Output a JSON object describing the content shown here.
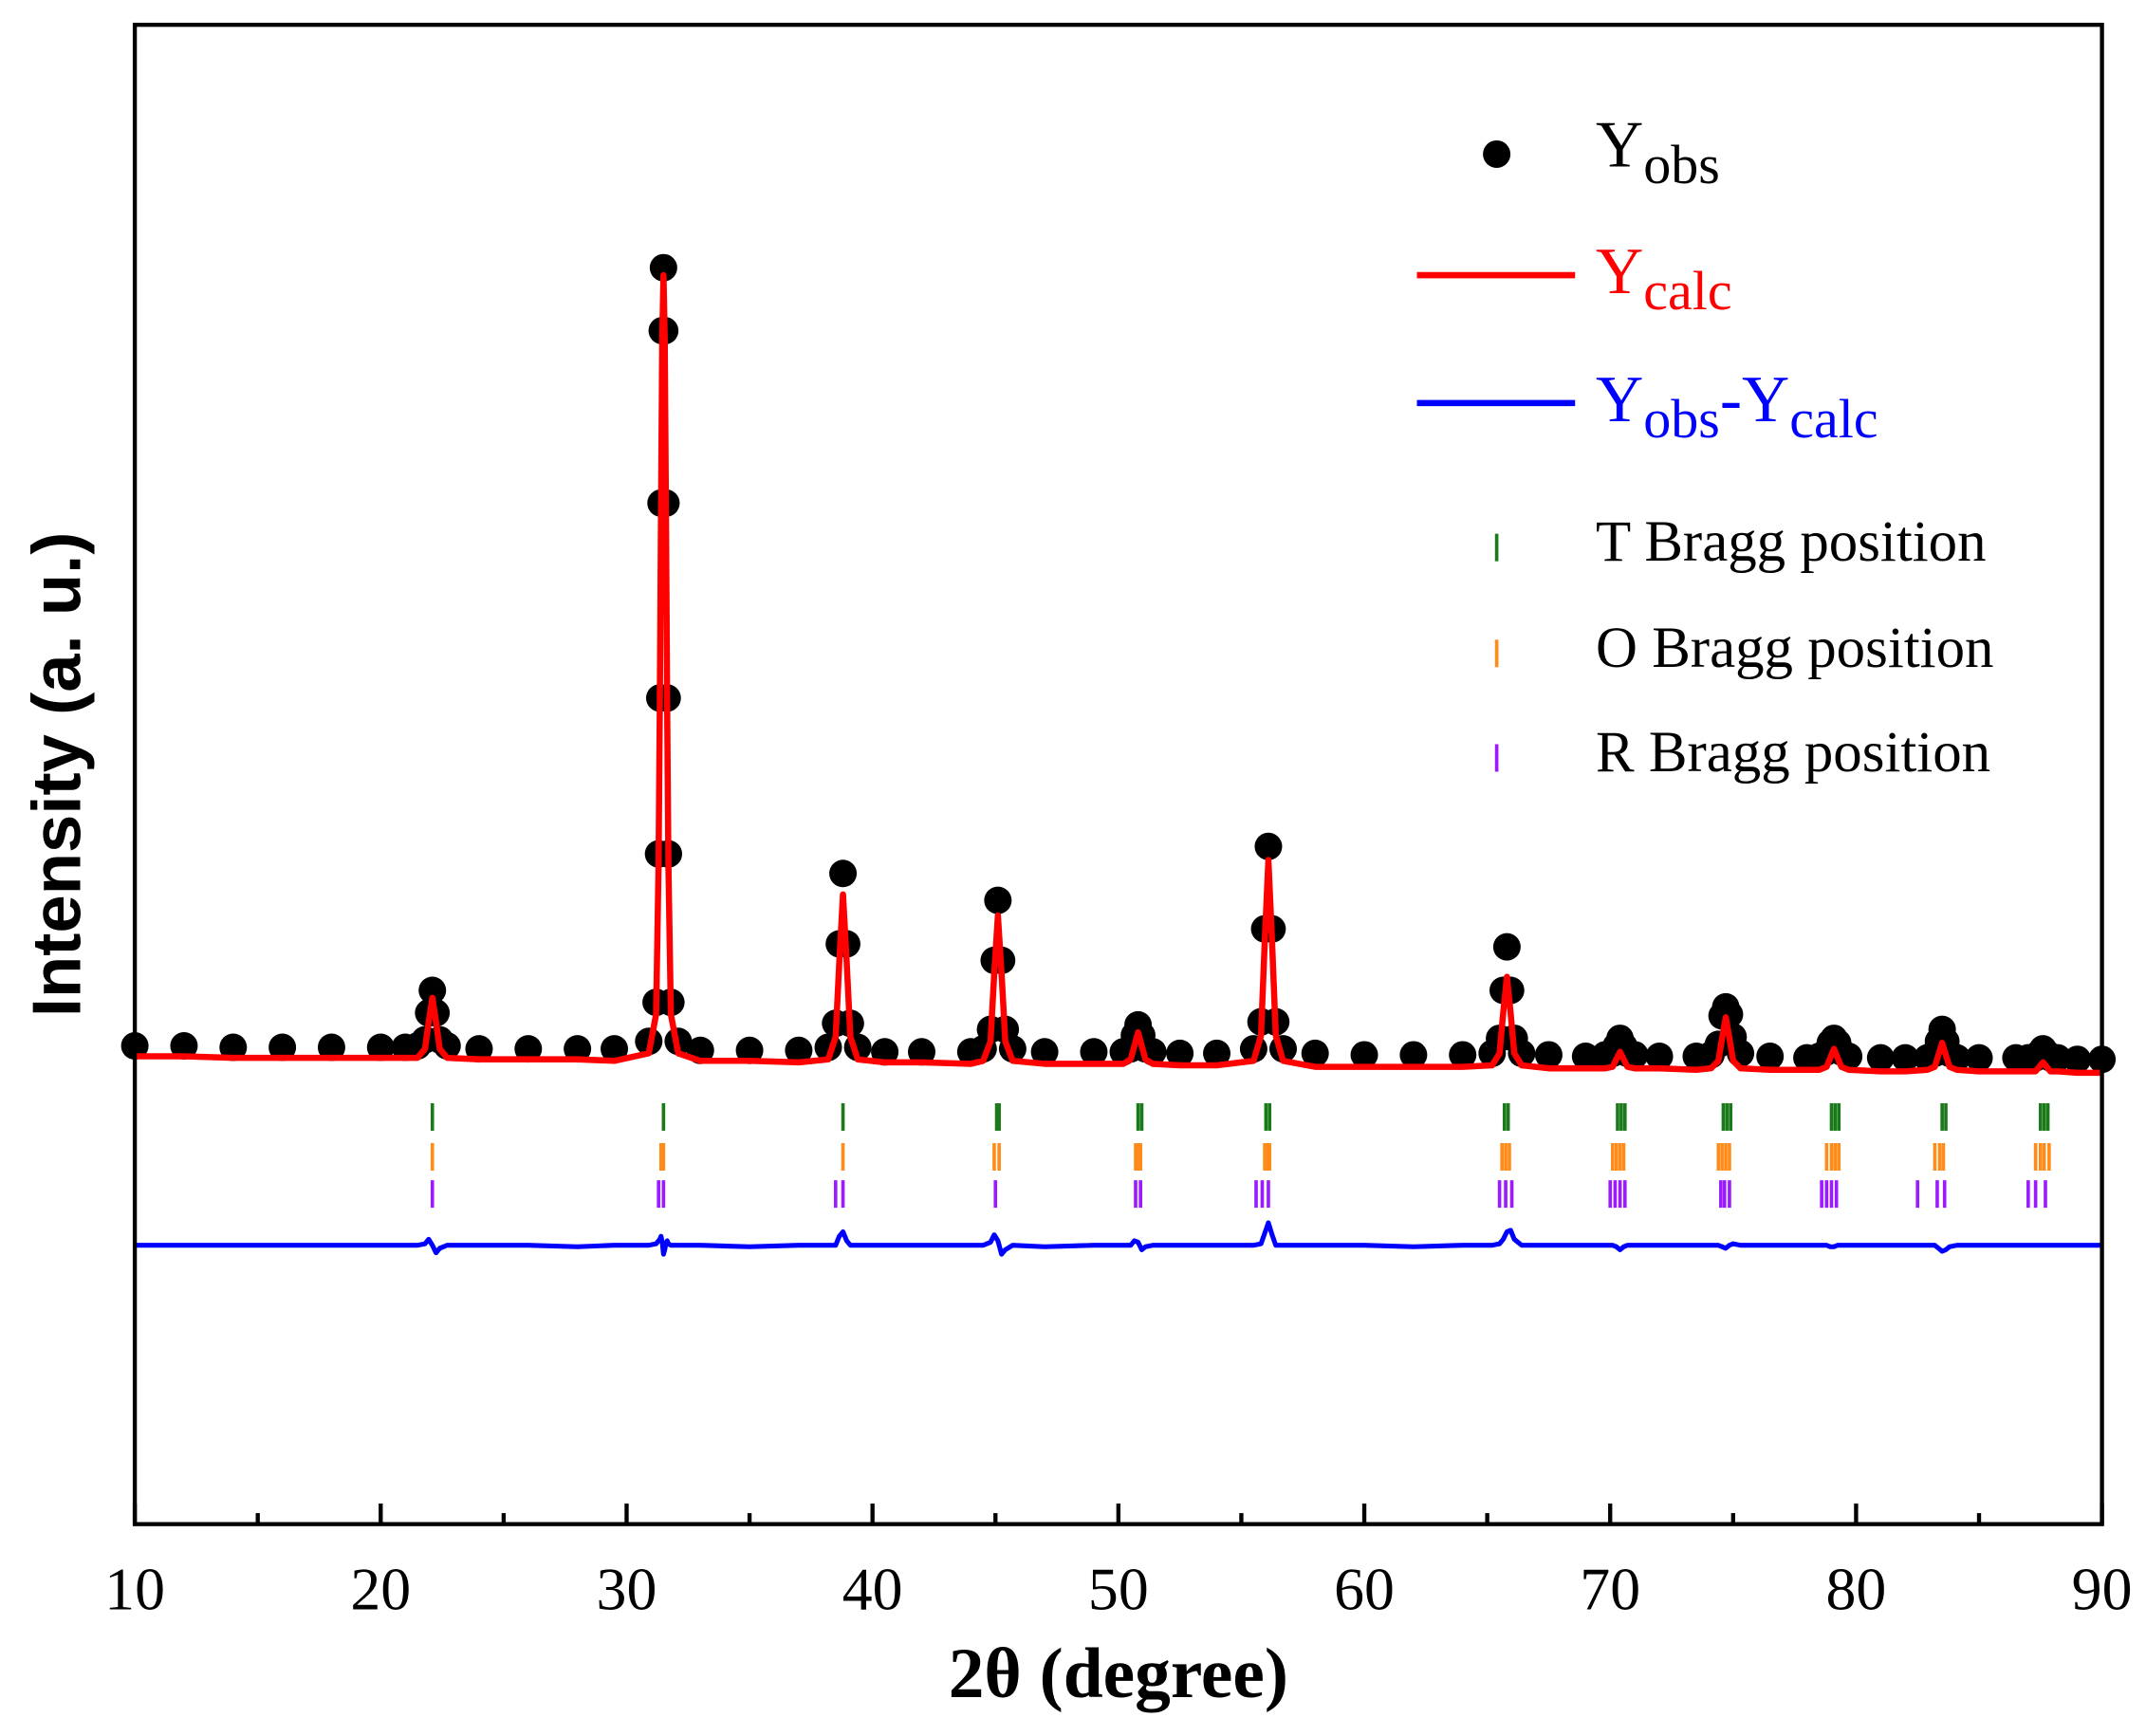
{
  "chart_data": {
    "type": "line",
    "xlabel": "2θ (degree)",
    "ylabel": "Intensity (a. u.)",
    "xlim": [
      10,
      90
    ],
    "xticks": [
      10,
      20,
      30,
      40,
      50,
      60,
      70,
      80,
      90
    ],
    "xminorticks": [
      15,
      25,
      35,
      45,
      55,
      65,
      75,
      85
    ],
    "ylim": [
      0,
      100
    ],
    "legend": "upper right",
    "x": [
      10,
      12,
      14,
      16,
      18,
      20,
      21,
      21.5,
      21.8,
      21.95,
      22.1,
      22.25,
      22.4,
      22.7,
      24,
      26,
      28,
      29.5,
      30.9,
      31.2,
      31.3,
      31.35,
      31.4,
      31.45,
      31.5,
      31.55,
      31.6,
      31.65,
      31.7,
      31.8,
      32.1,
      33,
      35,
      37,
      38.2,
      38.5,
      38.65,
      38.8,
      38.95,
      39.1,
      39.4,
      40.5,
      42,
      44,
      44.5,
      44.8,
      44.95,
      45.1,
      45.25,
      45.4,
      45.7,
      47,
      49,
      50.2,
      50.5,
      50.65,
      50.8,
      50.95,
      51.1,
      51.4,
      52.5,
      54,
      55.5,
      55.8,
      55.95,
      56.1,
      56.25,
      56.4,
      56.7,
      58,
      60,
      62,
      64,
      65.2,
      65.5,
      65.65,
      65.8,
      65.95,
      66.1,
      66.4,
      67.5,
      69,
      69.8,
      70.1,
      70.25,
      70.4,
      70.55,
      70.7,
      71.0,
      72,
      73.5,
      74.1,
      74.4,
      74.55,
      74.7,
      74.85,
      75.0,
      75.3,
      76.5,
      78,
      78.5,
      78.8,
      78.95,
      79.1,
      79.25,
      79.4,
      79.7,
      81,
      82,
      82.9,
      83.2,
      83.35,
      83.5,
      83.65,
      83.8,
      84.1,
      85,
      86.5,
      87.0,
      87.3,
      87.45,
      87.6,
      87.75,
      87.9,
      88.2,
      89,
      90
    ],
    "series": [
      {
        "name": [
          "Y",
          "obs"
        ],
        "color": "#000000",
        "style": "markers",
        "values": [
          31.9,
          31.9,
          31.8,
          31.8,
          31.8,
          31.8,
          31.8,
          31.9,
          32.3,
          34.1,
          35.6,
          34.1,
          32.3,
          31.9,
          31.7,
          31.7,
          31.7,
          31.7,
          32.2,
          34.8,
          44.7,
          55.1,
          68.1,
          79.6,
          83.8,
          79.6,
          68.1,
          55.1,
          44.7,
          34.8,
          32.2,
          31.6,
          31.6,
          31.6,
          31.8,
          33.4,
          38.7,
          43.4,
          38.7,
          33.4,
          31.8,
          31.5,
          31.5,
          31.5,
          31.7,
          33.0,
          37.6,
          41.6,
          37.6,
          33.0,
          31.7,
          31.5,
          31.5,
          31.5,
          31.7,
          32.6,
          33.3,
          32.6,
          31.7,
          31.5,
          31.4,
          31.4,
          31.7,
          33.5,
          39.7,
          45.2,
          39.7,
          33.5,
          31.7,
          31.4,
          31.3,
          31.3,
          31.3,
          31.4,
          32.4,
          35.6,
          38.5,
          35.6,
          32.4,
          31.4,
          31.3,
          31.2,
          31.3,
          31.4,
          31.9,
          32.4,
          31.9,
          31.4,
          31.3,
          31.2,
          31.2,
          31.3,
          32.0,
          33.9,
          34.5,
          34.0,
          32.5,
          31.4,
          31.2,
          31.1,
          31.2,
          31.5,
          32.1,
          32.4,
          32.1,
          31.5,
          31.2,
          31.1,
          31.1,
          31.1,
          31.4,
          32.2,
          33.0,
          32.2,
          31.4,
          31.1,
          31.1,
          31.1,
          31.1,
          31.1,
          31.4,
          31.7,
          31.4,
          31.1,
          31.1,
          31.0,
          31.0
        ]
      },
      {
        "name": [
          "Y",
          "calc"
        ],
        "color": "#ff0000",
        "style": "line",
        "values": [
          31.2,
          31.2,
          31.1,
          31.1,
          31.1,
          31.1,
          31.1,
          31.1,
          31.7,
          33.5,
          35.1,
          33.5,
          31.7,
          31.1,
          31.0,
          31.0,
          31.0,
          30.9,
          31.4,
          34.0,
          44.0,
          54.5,
          67.6,
          79.1,
          83.3,
          79.1,
          67.6,
          54.5,
          44.0,
          34.0,
          31.4,
          30.9,
          30.9,
          30.8,
          31.0,
          32.5,
          37.5,
          42.0,
          37.5,
          32.5,
          31.0,
          30.8,
          30.8,
          30.7,
          30.9,
          32.2,
          36.7,
          40.6,
          36.7,
          32.2,
          30.9,
          30.7,
          30.7,
          30.7,
          31.0,
          31.9,
          32.8,
          31.9,
          31.0,
          30.7,
          30.6,
          30.6,
          30.9,
          32.6,
          38.8,
          44.3,
          38.8,
          32.6,
          30.9,
          30.5,
          30.5,
          30.5,
          30.5,
          30.6,
          31.4,
          34.1,
          36.5,
          34.1,
          31.4,
          30.6,
          30.4,
          30.4,
          30.4,
          30.5,
          31.0,
          31.5,
          31.0,
          30.5,
          30.4,
          30.4,
          30.3,
          30.4,
          30.9,
          32.4,
          33.8,
          32.4,
          30.9,
          30.4,
          30.3,
          30.3,
          30.3,
          30.5,
          31.1,
          31.7,
          31.1,
          30.5,
          30.3,
          30.2,
          30.2,
          30.3,
          30.5,
          31.3,
          32.1,
          31.3,
          30.5,
          30.3,
          30.2,
          30.2,
          30.2,
          30.2,
          30.5,
          30.8,
          30.5,
          30.2,
          30.2,
          30.1,
          30.1
        ]
      },
      {
        "name": [
          "Y",
          "obs",
          "-Y",
          "calc"
        ],
        "color": "#0000ff",
        "style": "line",
        "values": [
          18.6,
          18.6,
          18.6,
          18.6,
          18.6,
          18.6,
          18.6,
          18.6,
          18.7,
          19.0,
          18.6,
          18.1,
          18.4,
          18.6,
          18.6,
          18.6,
          18.5,
          18.6,
          18.6,
          18.7,
          18.9,
          19.0,
          19.2,
          18.8,
          18.0,
          18.3,
          18.7,
          18.9,
          18.7,
          18.6,
          18.6,
          18.6,
          18.5,
          18.6,
          18.6,
          18.6,
          19.2,
          19.5,
          18.9,
          18.6,
          18.6,
          18.6,
          18.6,
          18.6,
          18.6,
          18.8,
          19.3,
          18.9,
          18.0,
          18.3,
          18.6,
          18.5,
          18.6,
          18.6,
          18.6,
          18.9,
          18.8,
          18.3,
          18.5,
          18.6,
          18.6,
          18.6,
          18.6,
          18.7,
          19.4,
          20.1,
          19.3,
          18.6,
          18.6,
          18.6,
          18.6,
          18.5,
          18.6,
          18.6,
          18.7,
          19.0,
          19.5,
          19.6,
          19.0,
          18.6,
          18.6,
          18.6,
          18.6,
          18.6,
          18.5,
          18.3,
          18.5,
          18.6,
          18.6,
          18.6,
          18.6,
          18.6,
          18.6,
          18.5,
          18.4,
          18.6,
          18.7,
          18.6,
          18.6,
          18.6,
          18.6,
          18.6,
          18.5,
          18.5,
          18.6,
          18.6,
          18.6,
          18.6,
          18.6,
          18.6,
          18.6,
          18.4,
          18.2,
          18.3,
          18.5,
          18.6,
          18.6,
          18.6,
          18.6,
          18.6,
          18.6,
          18.6,
          18.6,
          18.6,
          18.6,
          18.6,
          18.6
        ]
      }
    ],
    "bragg": [
      {
        "name": "T Bragg position",
        "color": "#1a7a1a",
        "positions": [
          22.1,
          31.5,
          38.8,
          45.05,
          45.15,
          50.8,
          50.95,
          56.0,
          56.15,
          65.7,
          65.85,
          70.3,
          70.45,
          70.6,
          74.6,
          74.75,
          74.9,
          79.0,
          79.15,
          79.3,
          83.5,
          83.65,
          87.5,
          87.65,
          87.8
        ]
      },
      {
        "name": "O Bragg position",
        "color": "#ff8c1a",
        "positions": [
          22.1,
          31.4,
          31.5,
          38.8,
          44.95,
          45.15,
          50.7,
          50.8,
          50.9,
          55.95,
          56.05,
          56.15,
          65.6,
          65.75,
          65.9,
          70.1,
          70.25,
          70.4,
          70.55,
          74.4,
          74.55,
          74.7,
          74.85,
          78.8,
          79.0,
          79.15,
          79.3,
          83.2,
          83.4,
          83.55,
          87.3,
          87.5,
          87.65,
          87.85
        ]
      },
      {
        "name": "R Bragg position",
        "color": "#9b1aff",
        "positions": [
          22.1,
          31.3,
          31.5,
          38.5,
          38.8,
          45.0,
          50.7,
          50.9,
          55.6,
          55.85,
          56.1,
          65.5,
          65.75,
          66.0,
          70.0,
          70.2,
          70.4,
          70.6,
          74.5,
          74.65,
          74.85,
          78.6,
          78.8,
          79.0,
          79.2,
          82.5,
          83.3,
          83.6,
          87.0,
          87.3,
          87.7
        ]
      }
    ]
  }
}
